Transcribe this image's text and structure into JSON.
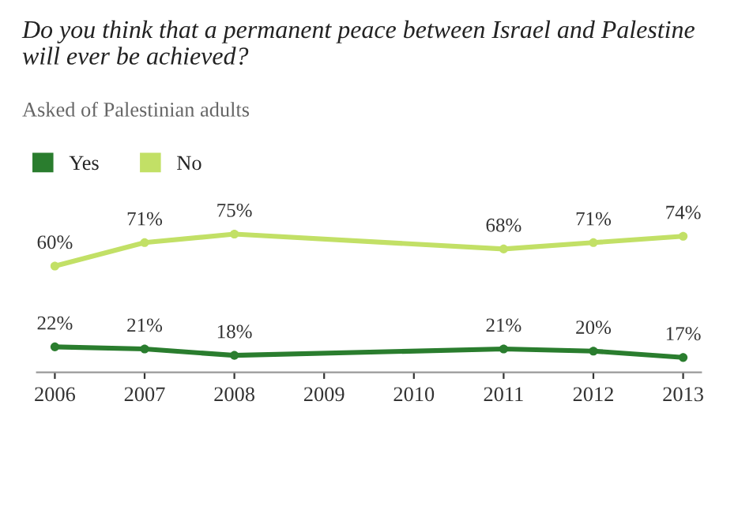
{
  "chart_data": {
    "type": "line",
    "title": "Do you think that a permanent peace between Israel and Palestine will ever be achieved?",
    "subtitle": "Asked of Palestinian adults",
    "x": [
      2006,
      2007,
      2008,
      2011,
      2012,
      2013
    ],
    "series": [
      {
        "name": "Yes",
        "color": "#2a7d2e",
        "values": [
          22,
          21,
          18,
          21,
          20,
          17
        ],
        "value_labels": [
          "22%",
          "21%",
          "18%",
          "21%",
          "20%",
          "17%"
        ]
      },
      {
        "name": "No",
        "color": "#c2e066",
        "values": [
          60,
          71,
          75,
          68,
          71,
          74
        ],
        "value_labels": [
          "60%",
          "71%",
          "75%",
          "68%",
          "71%",
          "74%"
        ]
      }
    ],
    "xlim": [
      2005.8,
      2013.2
    ],
    "xticks": [
      2006,
      2007,
      2008,
      2009,
      2010,
      2011,
      2012,
      2013
    ],
    "tick_labels": "x",
    "grid": false,
    "legend": "top left",
    "marker": "circle",
    "line_style": "solid"
  }
}
